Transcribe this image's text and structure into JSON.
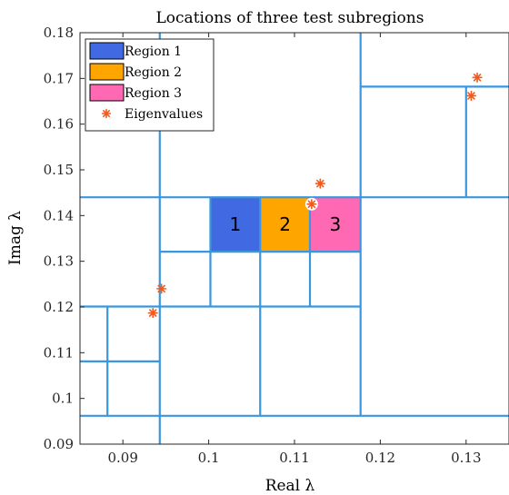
{
  "chart_data": {
    "type": "scatter",
    "title": "Locations of three test subregions",
    "xlabel": "Real λ",
    "ylabel": "Imag λ",
    "xlim": [
      0.085,
      0.135
    ],
    "ylim": [
      0.09,
      0.18
    ],
    "xticks": [
      {
        "value": 0.09,
        "label": "0.09"
      },
      {
        "value": 0.1,
        "label": "0.1"
      },
      {
        "value": 0.11,
        "label": "0.11"
      },
      {
        "value": 0.12,
        "label": "0.12"
      },
      {
        "value": 0.13,
        "label": "0.13"
      }
    ],
    "yticks": [
      {
        "value": 0.09,
        "label": "0.09"
      },
      {
        "value": 0.1,
        "label": "0.1"
      },
      {
        "value": 0.11,
        "label": "0.11"
      },
      {
        "value": 0.12,
        "label": "0.12"
      },
      {
        "value": 0.13,
        "label": "0.13"
      },
      {
        "value": 0.14,
        "label": "0.14"
      },
      {
        "value": 0.15,
        "label": "0.15"
      },
      {
        "value": 0.16,
        "label": "0.16"
      },
      {
        "value": 0.17,
        "label": "0.17"
      },
      {
        "value": 0.18,
        "label": "0.18"
      }
    ],
    "grid": false,
    "legend_position": "top-left",
    "partition_color": "#3a96dd",
    "partition_segments": [
      {
        "x1": 0.085,
        "y1": 0.144,
        "x2": 0.135,
        "y2": 0.144
      },
      {
        "x1": 0.085,
        "y1": 0.0962,
        "x2": 0.135,
        "y2": 0.0962
      },
      {
        "x1": 0.0943,
        "y1": 0.09,
        "x2": 0.0943,
        "y2": 0.18
      },
      {
        "x1": 0.1177,
        "y1": 0.0962,
        "x2": 0.1177,
        "y2": 0.18
      },
      {
        "x1": 0.1177,
        "y1": 0.1682,
        "x2": 0.135,
        "y2": 0.1682
      },
      {
        "x1": 0.13,
        "y1": 0.144,
        "x2": 0.13,
        "y2": 0.1682
      },
      {
        "x1": 0.085,
        "y1": 0.1201,
        "x2": 0.1177,
        "y2": 0.1201
      },
      {
        "x1": 0.0943,
        "y1": 0.1321,
        "x2": 0.1177,
        "y2": 0.1321
      },
      {
        "x1": 0.1002,
        "y1": 0.1201,
        "x2": 0.1002,
        "y2": 0.144
      },
      {
        "x1": 0.106,
        "y1": 0.0962,
        "x2": 0.106,
        "y2": 0.144
      },
      {
        "x1": 0.1118,
        "y1": 0.1201,
        "x2": 0.1118,
        "y2": 0.144
      },
      {
        "x1": 0.0882,
        "y1": 0.0962,
        "x2": 0.0882,
        "y2": 0.1201
      },
      {
        "x1": 0.085,
        "y1": 0.1081,
        "x2": 0.0943,
        "y2": 0.1081
      }
    ],
    "regions": [
      {
        "name": "Region 1",
        "label": "1",
        "color": "#4169e1",
        "x": [
          0.1002,
          0.106
        ],
        "y": [
          0.1321,
          0.144
        ]
      },
      {
        "name": "Region 2",
        "label": "2",
        "color": "#ffa500",
        "x": [
          0.106,
          0.1118
        ],
        "y": [
          0.1321,
          0.144
        ]
      },
      {
        "name": "Region 3",
        "label": "3",
        "color": "#ff69b4",
        "x": [
          0.1118,
          0.1177
        ],
        "y": [
          0.1321,
          0.144
        ]
      }
    ],
    "eigenvalues": {
      "name": "Eigenvalues",
      "color": "#f05a1e",
      "points": [
        {
          "x": 0.0935,
          "y": 0.1187
        },
        {
          "x": 0.0945,
          "y": 0.124
        },
        {
          "x": 0.112,
          "y": 0.1425
        },
        {
          "x": 0.113,
          "y": 0.147
        },
        {
          "x": 0.1306,
          "y": 0.1662
        },
        {
          "x": 0.1313,
          "y": 0.1702
        }
      ],
      "highlighted_index": 2
    }
  }
}
